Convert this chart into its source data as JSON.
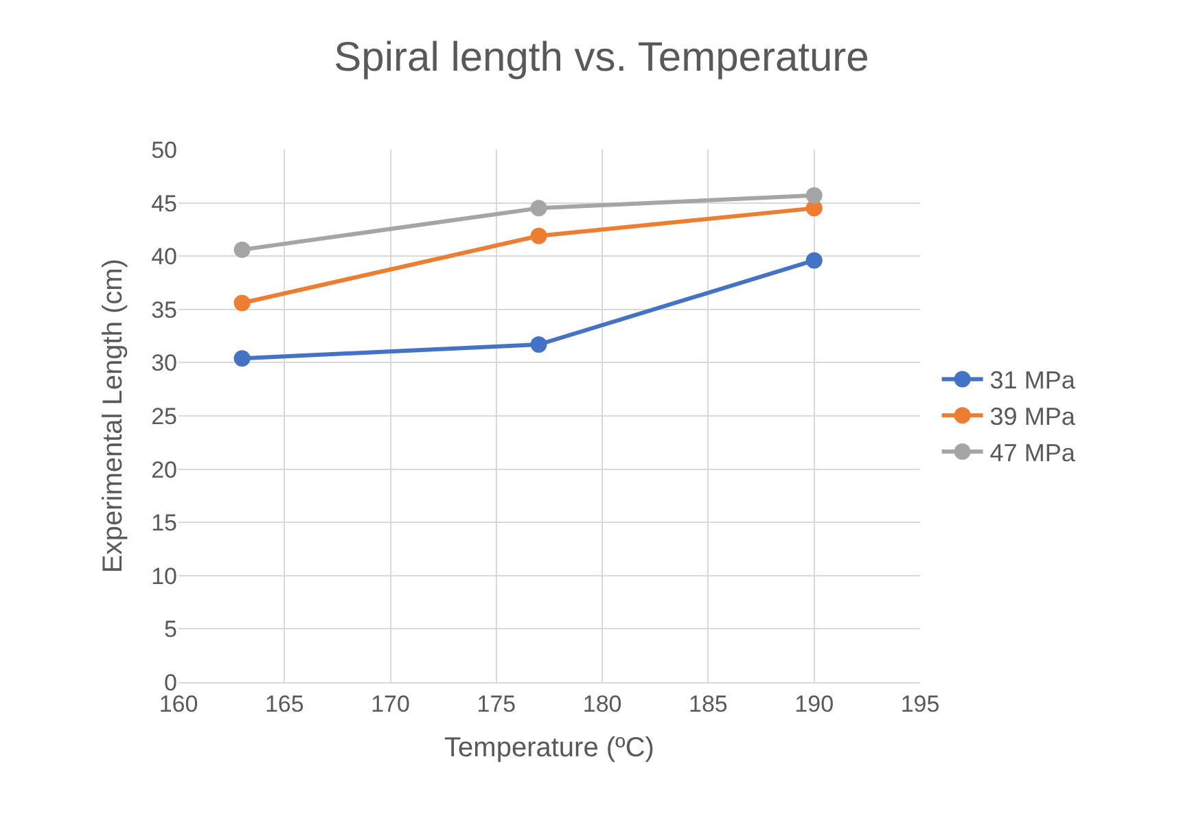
{
  "chart_data": {
    "type": "line",
    "title": "Spiral length vs. Temperature",
    "xlabel": "Temperature (ºC)",
    "ylabel": "Experimental Length (cm)",
    "x": [
      163,
      177,
      190
    ],
    "series": [
      {
        "name": "31 MPa",
        "color": "#4472c4",
        "values": [
          30.4,
          31.7,
          39.6
        ]
      },
      {
        "name": "39 MPa",
        "color": "#ed7d31",
        "values": [
          35.6,
          41.9,
          44.5
        ]
      },
      {
        "name": "47 MPa",
        "color": "#a5a5a5",
        "values": [
          40.6,
          44.5,
          45.7
        ]
      }
    ],
    "xlim": [
      160,
      195
    ],
    "xticks": [
      160,
      165,
      170,
      175,
      180,
      185,
      190,
      195
    ],
    "ylim": [
      0,
      50
    ],
    "yticks": [
      0,
      5,
      10,
      15,
      20,
      25,
      30,
      35,
      40,
      45,
      50
    ],
    "grid": true,
    "legend": "right",
    "marker": "circle",
    "line_style": "solid"
  }
}
